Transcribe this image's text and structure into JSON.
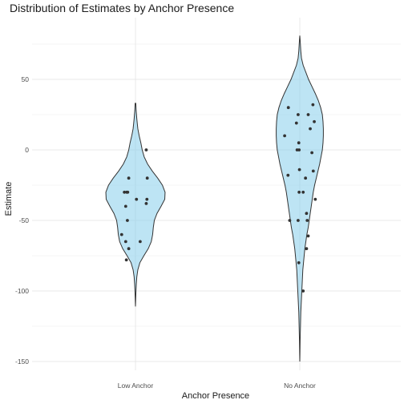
{
  "chart_data": {
    "type": "violin",
    "title": "Distribution of Estimates by Anchor Presence",
    "xlabel": "Anchor Presence",
    "ylabel": "Estimate",
    "ylim": [
      -155,
      85
    ],
    "y_ticks": [
      50,
      0,
      -50,
      -100,
      -150
    ],
    "y_tick_labels": [
      "50",
      "0",
      "-50",
      "-100",
      "-150"
    ],
    "categories": [
      "Low Anchor",
      "No Anchor"
    ],
    "fill_color": "#87ceeb",
    "point_color": "#333333",
    "series": [
      {
        "name": "Low Anchor",
        "points": [
          {
            "jitter": 0.32,
            "value": 0
          },
          {
            "jitter": 0.35,
            "value": -20
          },
          {
            "jitter": -0.2,
            "value": -20
          },
          {
            "jitter": -0.33,
            "value": -30
          },
          {
            "jitter": -0.26,
            "value": -30
          },
          {
            "jitter": -0.23,
            "value": -30
          },
          {
            "jitter": 0.03,
            "value": -35
          },
          {
            "jitter": 0.34,
            "value": -35
          },
          {
            "jitter": 0.32,
            "value": -38
          },
          {
            "jitter": -0.29,
            "value": -40
          },
          {
            "jitter": -0.24,
            "value": -50
          },
          {
            "jitter": -0.41,
            "value": -60
          },
          {
            "jitter": -0.29,
            "value": -65
          },
          {
            "jitter": 0.14,
            "value": -65
          },
          {
            "jitter": -0.2,
            "value": -70
          },
          {
            "jitter": -0.27,
            "value": -78
          }
        ],
        "density": [
          [
            33,
            0.01
          ],
          [
            28,
            0.02
          ],
          [
            22,
            0.04
          ],
          [
            15,
            0.07
          ],
          [
            10,
            0.11
          ],
          [
            5,
            0.16
          ],
          [
            0,
            0.2
          ],
          [
            -5,
            0.26
          ],
          [
            -10,
            0.36
          ],
          [
            -15,
            0.5
          ],
          [
            -20,
            0.66
          ],
          [
            -25,
            0.8
          ],
          [
            -30,
            0.88
          ],
          [
            -35,
            0.87
          ],
          [
            -40,
            0.76
          ],
          [
            -45,
            0.64
          ],
          [
            -50,
            0.56
          ],
          [
            -55,
            0.53
          ],
          [
            -60,
            0.51
          ],
          [
            -65,
            0.47
          ],
          [
            -70,
            0.38
          ],
          [
            -75,
            0.25
          ],
          [
            -80,
            0.13
          ],
          [
            -85,
            0.07
          ],
          [
            -90,
            0.04
          ],
          [
            -95,
            0.025
          ],
          [
            -100,
            0.015
          ],
          [
            -105,
            0.008
          ],
          [
            -111,
            0.0
          ]
        ]
      },
      {
        "name": "No Anchor",
        "points": [
          {
            "jitter": 0.39,
            "value": 32
          },
          {
            "jitter": -0.34,
            "value": 30
          },
          {
            "jitter": 0.25,
            "value": 25
          },
          {
            "jitter": -0.05,
            "value": 25
          },
          {
            "jitter": 0.43,
            "value": 20
          },
          {
            "jitter": -0.1,
            "value": 19
          },
          {
            "jitter": 0.31,
            "value": 15
          },
          {
            "jitter": -0.45,
            "value": 10
          },
          {
            "jitter": -0.03,
            "value": 5
          },
          {
            "jitter": -0.08,
            "value": 0
          },
          {
            "jitter": -0.02,
            "value": 0
          },
          {
            "jitter": 0.36,
            "value": -2
          },
          {
            "jitter": -0.01,
            "value": -14
          },
          {
            "jitter": 0.4,
            "value": -15
          },
          {
            "jitter": -0.35,
            "value": -18
          },
          {
            "jitter": 0.17,
            "value": -20
          },
          {
            "jitter": -0.02,
            "value": -30
          },
          {
            "jitter": 0.1,
            "value": -30
          },
          {
            "jitter": 0.46,
            "value": -35
          },
          {
            "jitter": 0.2,
            "value": -45
          },
          {
            "jitter": -0.3,
            "value": -50
          },
          {
            "jitter": -0.05,
            "value": -50
          },
          {
            "jitter": 0.22,
            "value": -50
          },
          {
            "jitter": 0.25,
            "value": -61
          },
          {
            "jitter": 0.2,
            "value": -70
          },
          {
            "jitter": -0.03,
            "value": -80
          },
          {
            "jitter": 0.1,
            "value": -100
          }
        ],
        "density": [
          [
            81,
            0.0
          ],
          [
            78,
            0.01
          ],
          [
            74,
            0.02
          ],
          [
            70,
            0.03
          ],
          [
            65,
            0.05
          ],
          [
            60,
            0.1
          ],
          [
            55,
            0.18
          ],
          [
            50,
            0.26
          ],
          [
            45,
            0.36
          ],
          [
            40,
            0.46
          ],
          [
            35,
            0.55
          ],
          [
            30,
            0.62
          ],
          [
            25,
            0.67
          ],
          [
            20,
            0.69
          ],
          [
            15,
            0.7
          ],
          [
            10,
            0.7
          ],
          [
            5,
            0.69
          ],
          [
            0,
            0.67
          ],
          [
            -5,
            0.63
          ],
          [
            -10,
            0.59
          ],
          [
            -15,
            0.54
          ],
          [
            -20,
            0.49
          ],
          [
            -25,
            0.44
          ],
          [
            -30,
            0.4
          ],
          [
            -35,
            0.37
          ],
          [
            -40,
            0.34
          ],
          [
            -45,
            0.31
          ],
          [
            -50,
            0.28
          ],
          [
            -55,
            0.25
          ],
          [
            -60,
            0.21
          ],
          [
            -65,
            0.18
          ],
          [
            -70,
            0.15
          ],
          [
            -75,
            0.13
          ],
          [
            -80,
            0.11
          ],
          [
            -85,
            0.09
          ],
          [
            -90,
            0.08
          ],
          [
            -95,
            0.07
          ],
          [
            -100,
            0.06
          ],
          [
            -105,
            0.05
          ],
          [
            -110,
            0.04
          ],
          [
            -115,
            0.03
          ],
          [
            -120,
            0.025
          ],
          [
            -125,
            0.02
          ],
          [
            -130,
            0.015
          ],
          [
            -135,
            0.01
          ],
          [
            -140,
            0.007
          ],
          [
            -145,
            0.004
          ],
          [
            -150,
            0.0
          ]
        ]
      }
    ]
  }
}
